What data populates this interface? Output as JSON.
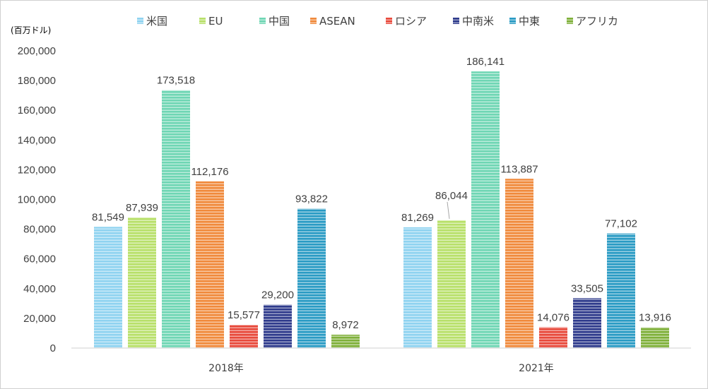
{
  "chart_data": {
    "type": "bar",
    "unit_label": "(百万ドル)",
    "categories": [
      "2018年",
      "2021年"
    ],
    "ylim": [
      0,
      200000
    ],
    "y_ticks": [
      "0",
      "20,000",
      "40,000",
      "60,000",
      "80,000",
      "100,000",
      "120,000",
      "140,000",
      "160,000",
      "180,000",
      "200,000"
    ],
    "grid": false,
    "legend_position": "top",
    "series": [
      {
        "name": "米国",
        "values": [
          81549,
          81269
        ],
        "labels": [
          "81,549",
          "81,269"
        ],
        "color": "#8fd3f0"
      },
      {
        "name": "EU",
        "values": [
          87939,
          86044
        ],
        "labels": [
          "87,939",
          "86,044"
        ],
        "color": "#b8e06a"
      },
      {
        "name": "中国",
        "values": [
          173518,
          186141
        ],
        "labels": [
          "173,518",
          "186,141"
        ],
        "color": "#6fd6b4"
      },
      {
        "name": "ASEAN",
        "values": [
          112176,
          113887
        ],
        "labels": [
          "112,176",
          "113,887"
        ],
        "color": "#f08a3c"
      },
      {
        "name": "ロシア",
        "values": [
          15577,
          14076
        ],
        "labels": [
          "15,577",
          "14,076"
        ],
        "color": "#e84a3c"
      },
      {
        "name": "中南米",
        "values": [
          29200,
          33505
        ],
        "labels": [
          "29,200",
          "33,505"
        ],
        "color": "#2f3b8c"
      },
      {
        "name": "中東",
        "values": [
          93822,
          77102
        ],
        "labels": [
          "93,822",
          "77,102"
        ],
        "color": "#2a9bc4"
      },
      {
        "name": "アフリカ",
        "values": [
          8972,
          13916
        ],
        "labels": [
          "8,972",
          "13,916"
        ],
        "color": "#7fb03a"
      }
    ]
  }
}
